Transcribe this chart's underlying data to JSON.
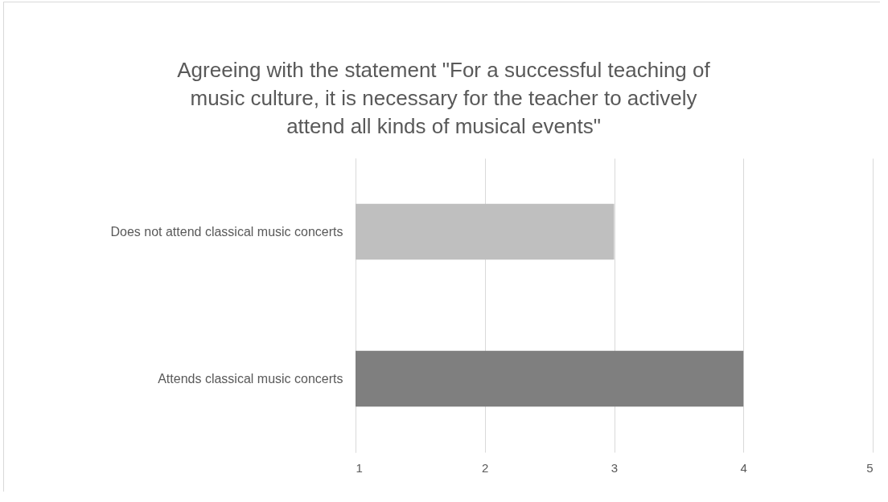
{
  "chart_data": {
    "type": "bar",
    "orientation": "horizontal",
    "title": "Agreeing with the statement \"For a successful teaching of music culture, it is necessary for the teacher to actively attend all kinds of musical events\"",
    "categories": [
      "Does not attend classical music concerts",
      "Attends classical music concerts"
    ],
    "values": [
      3,
      4
    ],
    "colors": [
      "#bfbfbf",
      "#7f7f7f"
    ],
    "xlim": [
      1,
      5
    ],
    "xticks": [
      1,
      2,
      3,
      4,
      5
    ],
    "grid": "x"
  }
}
